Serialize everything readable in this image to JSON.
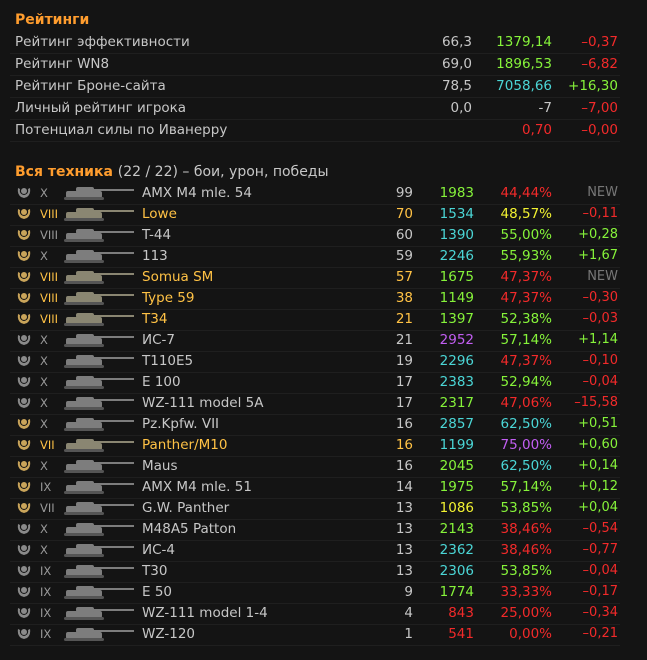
{
  "ratings": {
    "title": "Рейтинги",
    "rows": [
      {
        "label": "Рейтинг эффективности",
        "a": "66,3",
        "b": "1379,14",
        "b_color": "#86f33a",
        "c": "–0,37",
        "c_color": "#f22a2a"
      },
      {
        "label": "Рейтинг WN8",
        "a": "69,0",
        "b": "1896,53",
        "b_color": "#86f33a",
        "c": "–6,82",
        "c_color": "#f22a2a"
      },
      {
        "label": "Рейтинг Броне-сайта",
        "a": "78,5",
        "b": "7058,66",
        "b_color": "#4bd6d6",
        "c": "+16,30",
        "c_color": "#86f33a"
      },
      {
        "label": "Личный рейтинг игрока",
        "a": "0,0",
        "b": "-7",
        "b_color": "#c7c7c7",
        "c": "–7,00",
        "c_color": "#f22a2a"
      },
      {
        "label": "Потенциал силы по Иванерру",
        "a": "",
        "b": "0,70",
        "b_color": "#f22a2a",
        "c": "–0,00",
        "c_color": "#f22a2a"
      }
    ]
  },
  "vehicles": {
    "title": "Вся техника",
    "count": "(22 / 22) – бои, урон, победы",
    "rows": [
      {
        "tier": "X",
        "name": "AMX M4 mle. 54",
        "battles": "99",
        "dmg": "1983",
        "dmg_color": "#86f33a",
        "wr": "44,44%",
        "wr_color": "#f22a2a",
        "delta": "NEW",
        "delta_color": "#777777",
        "premium": false,
        "medal": "#8a8a8a"
      },
      {
        "tier": "VIII",
        "name": "Lowe",
        "battles": "70",
        "dmg": "1534",
        "dmg_color": "#4bd6d6",
        "wr": "48,57%",
        "wr_color": "#f2f231",
        "delta": "–0,11",
        "delta_color": "#f22a2a",
        "premium": true,
        "medal": "#c9a45a"
      },
      {
        "tier": "VIII",
        "name": "T-44",
        "battles": "60",
        "dmg": "1390",
        "dmg_color": "#4bd6d6",
        "wr": "55,00%",
        "wr_color": "#86f33a",
        "delta": "+0,28",
        "delta_color": "#86f33a",
        "premium": false,
        "medal": "#c9a45a"
      },
      {
        "tier": "X",
        "name": "113",
        "battles": "59",
        "dmg": "2246",
        "dmg_color": "#4bd6d6",
        "wr": "55,93%",
        "wr_color": "#86f33a",
        "delta": "+1,67",
        "delta_color": "#86f33a",
        "premium": false,
        "medal": "#c9a45a"
      },
      {
        "tier": "VIII",
        "name": "Somua SM",
        "battles": "57",
        "dmg": "1675",
        "dmg_color": "#86f33a",
        "wr": "47,37%",
        "wr_color": "#f22a2a",
        "delta": "NEW",
        "delta_color": "#777777",
        "premium": true,
        "medal": "#c9a45a"
      },
      {
        "tier": "VIII",
        "name": "Type 59",
        "battles": "38",
        "dmg": "1149",
        "dmg_color": "#86f33a",
        "wr": "47,37%",
        "wr_color": "#f22a2a",
        "delta": "–0,30",
        "delta_color": "#f22a2a",
        "premium": true,
        "medal": "#c9a45a"
      },
      {
        "tier": "VIII",
        "name": "T34",
        "battles": "21",
        "dmg": "1397",
        "dmg_color": "#86f33a",
        "wr": "52,38%",
        "wr_color": "#86f33a",
        "delta": "–0,03",
        "delta_color": "#f22a2a",
        "premium": true,
        "medal": "#c9a45a"
      },
      {
        "tier": "X",
        "name": "ИС-7",
        "battles": "21",
        "dmg": "2952",
        "dmg_color": "#c25ef2",
        "wr": "57,14%",
        "wr_color": "#86f33a",
        "delta": "+1,14",
        "delta_color": "#86f33a",
        "premium": false,
        "medal": "#8a8a8a"
      },
      {
        "tier": "X",
        "name": "T110E5",
        "battles": "19",
        "dmg": "2296",
        "dmg_color": "#4bd6d6",
        "wr": "47,37%",
        "wr_color": "#f22a2a",
        "delta": "–0,10",
        "delta_color": "#f22a2a",
        "premium": false,
        "medal": "#8a8a8a"
      },
      {
        "tier": "X",
        "name": "E 100",
        "battles": "17",
        "dmg": "2383",
        "dmg_color": "#4bd6d6",
        "wr": "52,94%",
        "wr_color": "#86f33a",
        "delta": "–0,04",
        "delta_color": "#f22a2a",
        "premium": false,
        "medal": "#8a8a8a"
      },
      {
        "tier": "X",
        "name": "WZ-111 model 5A",
        "battles": "17",
        "dmg": "2317",
        "dmg_color": "#86f33a",
        "wr": "47,06%",
        "wr_color": "#f22a2a",
        "delta": "–15,58",
        "delta_color": "#f22a2a",
        "premium": false,
        "medal": "#8a8a8a"
      },
      {
        "tier": "X",
        "name": "Pz.Kpfw. VII",
        "battles": "16",
        "dmg": "2857",
        "dmg_color": "#4bd6d6",
        "wr": "62,50%",
        "wr_color": "#4bd6d6",
        "delta": "+0,51",
        "delta_color": "#86f33a",
        "premium": false,
        "medal": "#c9a45a"
      },
      {
        "tier": "VII",
        "name": "Panther/M10",
        "battles": "16",
        "dmg": "1199",
        "dmg_color": "#4bd6d6",
        "wr": "75,00%",
        "wr_color": "#c25ef2",
        "delta": "+0,60",
        "delta_color": "#86f33a",
        "premium": true,
        "medal": "#c9a45a"
      },
      {
        "tier": "X",
        "name": "Maus",
        "battles": "16",
        "dmg": "2045",
        "dmg_color": "#86f33a",
        "wr": "62,50%",
        "wr_color": "#4bd6d6",
        "delta": "+0,14",
        "delta_color": "#86f33a",
        "premium": false,
        "medal": "#c9a45a"
      },
      {
        "tier": "IX",
        "name": "AMX M4 mle. 51",
        "battles": "14",
        "dmg": "1975",
        "dmg_color": "#86f33a",
        "wr": "57,14%",
        "wr_color": "#86f33a",
        "delta": "+0,12",
        "delta_color": "#86f33a",
        "premium": false,
        "medal": "#c9a45a"
      },
      {
        "tier": "VII",
        "name": "G.W. Panther",
        "battles": "13",
        "dmg": "1086",
        "dmg_color": "#f2f231",
        "wr": "53,85%",
        "wr_color": "#86f33a",
        "delta": "+0,04",
        "delta_color": "#86f33a",
        "premium": false,
        "medal": "#c9a45a"
      },
      {
        "tier": "X",
        "name": "M48A5 Patton",
        "battles": "13",
        "dmg": "2143",
        "dmg_color": "#86f33a",
        "wr": "38,46%",
        "wr_color": "#f22a2a",
        "delta": "–0,54",
        "delta_color": "#f22a2a",
        "premium": false,
        "medal": "#8a8a8a"
      },
      {
        "tier": "X",
        "name": "ИС-4",
        "battles": "13",
        "dmg": "2362",
        "dmg_color": "#4bd6d6",
        "wr": "38,46%",
        "wr_color": "#f22a2a",
        "delta": "–0,77",
        "delta_color": "#f22a2a",
        "premium": false,
        "medal": "#8a8a8a"
      },
      {
        "tier": "IX",
        "name": "T30",
        "battles": "13",
        "dmg": "2306",
        "dmg_color": "#4bd6d6",
        "wr": "53,85%",
        "wr_color": "#86f33a",
        "delta": "–0,04",
        "delta_color": "#f22a2a",
        "premium": false,
        "medal": "#8a8a8a"
      },
      {
        "tier": "IX",
        "name": "E 50",
        "battles": "9",
        "dmg": "1774",
        "dmg_color": "#86f33a",
        "wr": "33,33%",
        "wr_color": "#f22a2a",
        "delta": "–0,17",
        "delta_color": "#f22a2a",
        "premium": false,
        "medal": "#8a8a8a"
      },
      {
        "tier": "IX",
        "name": "WZ-111 model 1-4",
        "battles": "4",
        "dmg": "843",
        "dmg_color": "#f22a2a",
        "wr": "25,00%",
        "wr_color": "#f22a2a",
        "delta": "–0,34",
        "delta_color": "#f22a2a",
        "premium": false,
        "medal": "#8a8a8a"
      },
      {
        "tier": "IX",
        "name": "WZ-120",
        "battles": "1",
        "dmg": "541",
        "dmg_color": "#f22a2a",
        "wr": "0,00%",
        "wr_color": "#f22a2a",
        "delta": "–0,21",
        "delta_color": "#f22a2a",
        "premium": false,
        "medal": "#8a8a8a"
      }
    ]
  }
}
